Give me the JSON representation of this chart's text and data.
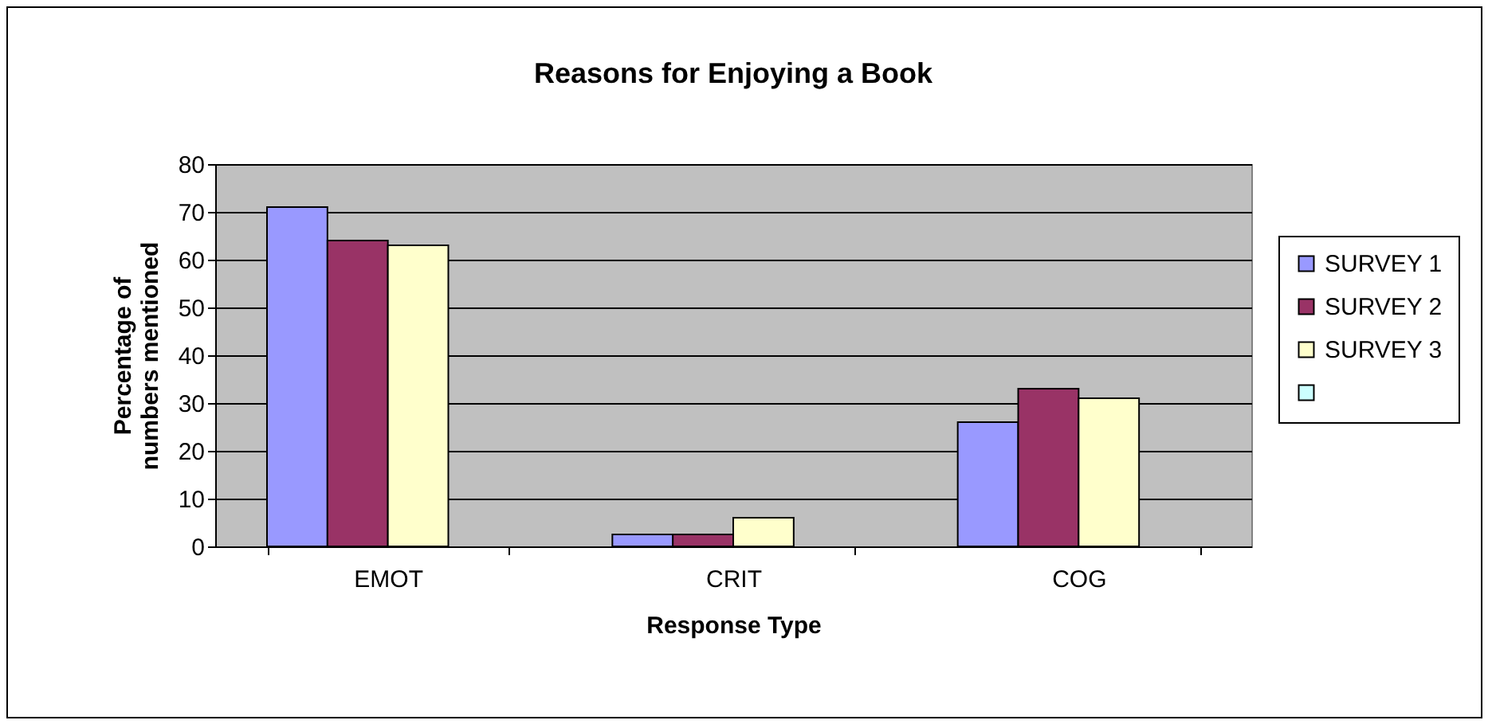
{
  "chart_data": {
    "type": "bar",
    "title": "Reasons for Enjoying a Book",
    "xlabel": "Response Type",
    "ylabel": "Percentage of numbers mentioned",
    "categories": [
      "EMOT",
      "CRIT",
      "COG"
    ],
    "series": [
      {
        "name": "SURVEY 1",
        "color": "#9999ff",
        "values": [
          71,
          2.5,
          26
        ]
      },
      {
        "name": "SURVEY 2",
        "color": "#993366",
        "values": [
          64,
          2.5,
          33
        ]
      },
      {
        "name": "SURVEY 3",
        "color": "#ffffcc",
        "values": [
          63,
          6,
          31
        ]
      },
      {
        "color": "#ccffff",
        "values": [
          null,
          null,
          null
        ]
      }
    ],
    "ylim": [
      0,
      80
    ],
    "yticks": [
      0,
      10,
      20,
      30,
      40,
      50,
      60,
      70,
      80
    ],
    "grid": "y",
    "legend": "right"
  }
}
